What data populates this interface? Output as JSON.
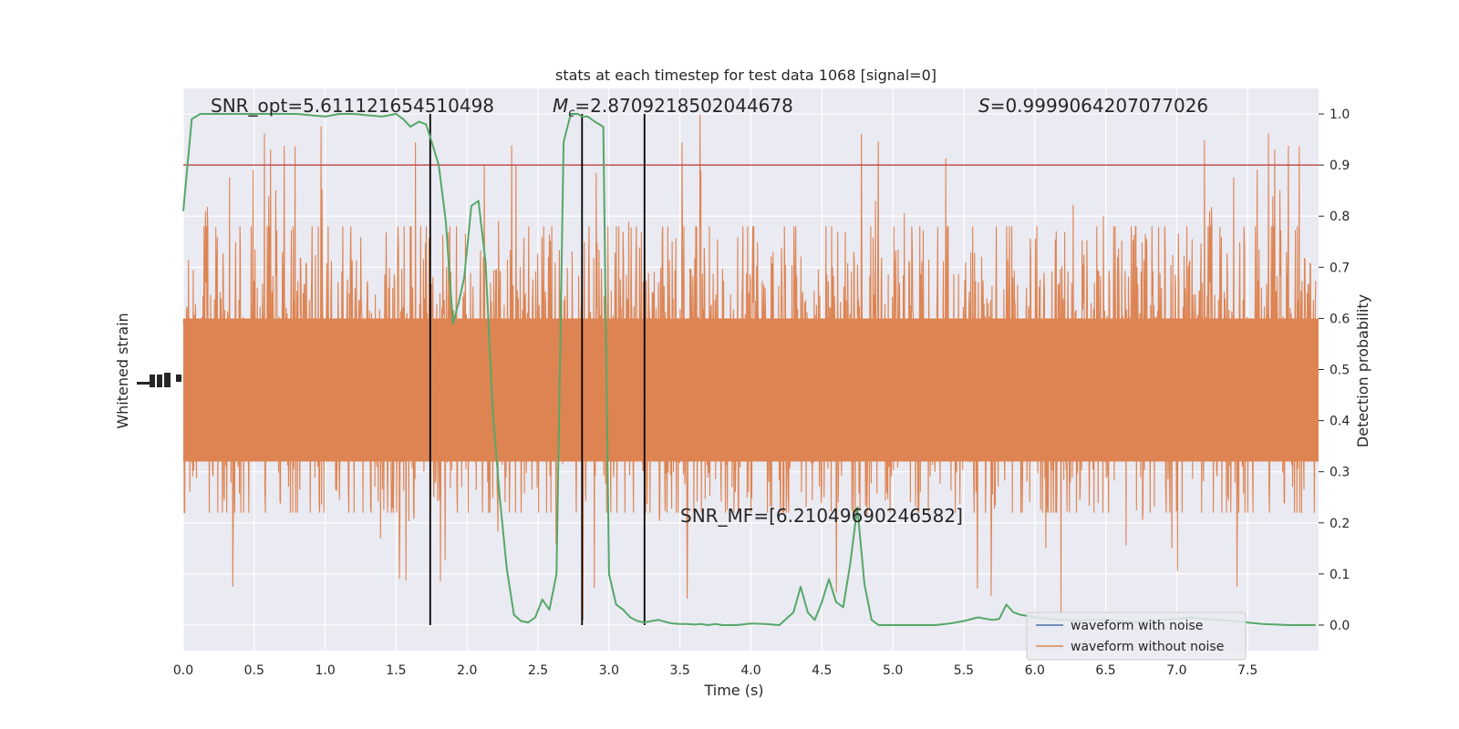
{
  "chart_data": {
    "type": "line",
    "title": "stats at each timestep for test data 1068 [signal=0]",
    "xlabel": "Time (s)",
    "ylabel_left": "Whitened strain",
    "ylabel_right": "Detection probability",
    "xlim": [
      0.0,
      8.0
    ],
    "x_ticks": [
      "0.0",
      "0.5",
      "1.0",
      "1.5",
      "2.0",
      "2.5",
      "3.0",
      "3.5",
      "4.0",
      "4.5",
      "5.0",
      "5.5",
      "6.0",
      "6.5",
      "7.0",
      "7.5"
    ],
    "right_ylim": [
      -0.05,
      1.05
    ],
    "right_ticks": [
      "0.0",
      "0.1",
      "0.2",
      "0.3",
      "0.4",
      "0.5",
      "0.6",
      "0.7",
      "0.8",
      "0.9",
      "1.0"
    ],
    "grid": true,
    "colors": {
      "background": "#eaeaf2",
      "grid": "#ffffff",
      "noise": "#dd8452",
      "signal": "#4c72b0",
      "probability": "#55a868",
      "threshold": "#c44e52",
      "markers": "#000000"
    },
    "annotations": {
      "snr_opt": "SNR_opt=5.611121654510498",
      "mc_symbol": "M",
      "mc_subscript": "c",
      "mc_value": "=2.8709218502044678",
      "s_symbol": "S",
      "s_value": "=0.9999064207077026",
      "snr_mf": "SNR_MF=[6.21049690246582]"
    },
    "threshold": 0.9,
    "vertical_markers": [
      1.74,
      2.81,
      3.25
    ],
    "noise_band": {
      "upper": 0.3,
      "lower": 0.2,
      "typical_max": 0.78,
      "typical_min": 0.22,
      "peak_max": 1.0,
      "peak_min": 0.0
    },
    "series": [
      {
        "name": "waveform with noise"
      },
      {
        "name": "waveform without noise"
      }
    ],
    "probability": {
      "x": [
        0.0,
        0.06,
        0.12,
        0.2,
        0.3,
        0.5,
        0.8,
        1.0,
        1.1,
        1.2,
        1.4,
        1.5,
        1.55,
        1.6,
        1.66,
        1.71,
        1.74,
        1.8,
        1.85,
        1.9,
        1.94,
        1.98,
        2.03,
        2.08,
        2.13,
        2.18,
        2.23,
        2.28,
        2.33,
        2.38,
        2.43,
        2.48,
        2.53,
        2.58,
        2.63,
        2.68,
        2.73,
        2.78,
        2.81,
        2.85,
        2.9,
        2.96,
        3.0,
        3.05,
        3.1,
        3.15,
        3.2,
        3.25,
        3.3,
        3.35,
        3.4,
        3.45,
        3.5,
        3.55,
        3.6,
        3.65,
        3.7,
        3.75,
        3.8,
        3.9,
        4.0,
        4.1,
        4.2,
        4.3,
        4.35,
        4.4,
        4.45,
        4.5,
        4.55,
        4.6,
        4.65,
        4.7,
        4.75,
        4.8,
        4.85,
        4.9,
        4.95,
        5.0,
        5.05,
        5.1,
        5.2,
        5.3,
        5.4,
        5.5,
        5.6,
        5.7,
        5.75,
        5.8,
        5.85,
        5.9,
        5.95,
        6.0,
        6.1,
        6.2,
        6.3,
        6.4,
        6.5,
        6.6,
        6.7,
        6.8,
        6.9,
        7.0,
        7.1,
        7.2,
        7.3,
        7.4,
        7.5,
        7.6,
        7.7,
        7.8,
        7.9,
        7.98
      ],
      "y": [
        0.81,
        0.99,
        1.0,
        1.0,
        1.0,
        1.0,
        1.0,
        0.995,
        1.0,
        1.0,
        0.995,
        1.0,
        0.99,
        0.975,
        0.985,
        0.98,
        0.955,
        0.9,
        0.79,
        0.59,
        0.63,
        0.68,
        0.82,
        0.83,
        0.71,
        0.42,
        0.25,
        0.11,
        0.02,
        0.008,
        0.005,
        0.015,
        0.05,
        0.03,
        0.1,
        0.945,
        1.0,
        1.0,
        0.995,
        0.995,
        0.985,
        0.975,
        0.1,
        0.04,
        0.03,
        0.015,
        0.008,
        0.005,
        0.008,
        0.01,
        0.006,
        0.003,
        0.002,
        0.002,
        0.001,
        0.002,
        0.0,
        0.002,
        0.0,
        0.0,
        0.003,
        0.002,
        0.0,
        0.025,
        0.075,
        0.025,
        0.01,
        0.045,
        0.09,
        0.045,
        0.035,
        0.12,
        0.23,
        0.08,
        0.01,
        0.0,
        0.0,
        0.0,
        0.0,
        0.0,
        0.0,
        0.0,
        0.003,
        0.008,
        0.015,
        0.01,
        0.012,
        0.04,
        0.025,
        0.02,
        0.018,
        0.015,
        0.012,
        0.01,
        0.008,
        0.01,
        0.01,
        0.008,
        0.006,
        0.008,
        0.01,
        0.012,
        0.015,
        0.012,
        0.01,
        0.008,
        0.005,
        0.002,
        0.001,
        0.0,
        0.0,
        0.0
      ]
    }
  }
}
